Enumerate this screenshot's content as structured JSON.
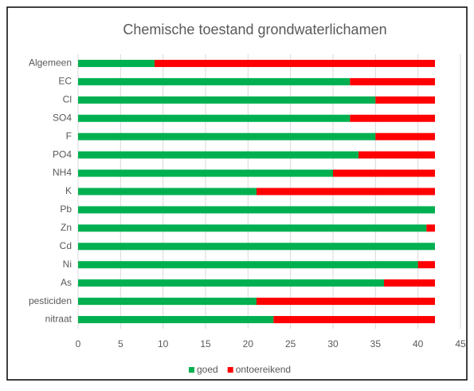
{
  "chart_data": {
    "type": "stacked-barh",
    "title": "Chemische toestand grondwaterlichamen",
    "categories": [
      "Algemeen",
      "EC",
      "Cl",
      "SO4",
      "F",
      "PO4",
      "NH4",
      "K",
      "Pb",
      "Zn",
      "Cd",
      "Ni",
      "As",
      "pesticiden",
      "nitraat"
    ],
    "series": [
      {
        "name": "goed",
        "color": "#00b050",
        "values": [
          9,
          32,
          35,
          32,
          35,
          33,
          30,
          21,
          42,
          41,
          42,
          40,
          36,
          21,
          23
        ]
      },
      {
        "name": "ontoereikend",
        "color": "#ff0000",
        "values": [
          33,
          10,
          7,
          10,
          7,
          9,
          12,
          21,
          0,
          1,
          0,
          2,
          6,
          21,
          19
        ]
      }
    ],
    "xlim": [
      0,
      45
    ],
    "xticks": [
      0,
      5,
      10,
      15,
      20,
      25,
      30,
      35,
      40,
      45
    ],
    "grid": true,
    "legend": "bottom"
  }
}
